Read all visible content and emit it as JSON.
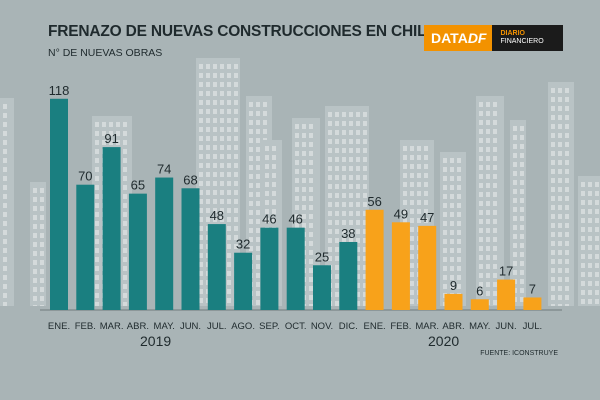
{
  "header": {
    "title": "FRENAZO DE NUEVAS CONSTRUCCIONES EN CHILE",
    "subtitle": "N° DE NUEVAS OBRAS"
  },
  "logo": {
    "brand_main": "DATA",
    "brand_accent": "DF",
    "line1": "DIARIO",
    "line2": "FINANCIERO"
  },
  "footer": {
    "source": "FUENTE: ICONSTRUYE",
    "year_2019": "2019",
    "year_2020": "2020"
  },
  "colors": {
    "teal": "#1a7f80",
    "orange": "#f8a21a",
    "background": "#a9b4b6",
    "text": "#1f2a2d"
  },
  "chart_data": {
    "type": "bar",
    "title": "FRENAZO DE NUEVAS CONSTRUCCIONES EN CHILE",
    "ylabel": "N° DE NUEVAS OBRAS",
    "xlabel": "",
    "ylim": [
      0,
      120
    ],
    "categories": [
      "ENE.",
      "FEB.",
      "MAR.",
      "ABR.",
      "MAY.",
      "JUN.",
      "JUL.",
      "AGO.",
      "SEP.",
      "OCT.",
      "NOV.",
      "DIC.",
      "ENE.",
      "FEB.",
      "MAR.",
      "ABR.",
      "MAY.",
      "JUN.",
      "JUL."
    ],
    "values": [
      118,
      70,
      91,
      65,
      74,
      68,
      48,
      32,
      46,
      46,
      25,
      38,
      56,
      49,
      47,
      9,
      6,
      17,
      7
    ],
    "years": [
      "2019",
      "2019",
      "2019",
      "2019",
      "2019",
      "2019",
      "2019",
      "2019",
      "2019",
      "2019",
      "2019",
      "2019",
      "2020",
      "2020",
      "2020",
      "2020",
      "2020",
      "2020",
      "2020"
    ],
    "series": [
      {
        "name": "2019",
        "color": "#1a7f80"
      },
      {
        "name": "2020",
        "color": "#f8a21a"
      }
    ],
    "grid": false
  }
}
